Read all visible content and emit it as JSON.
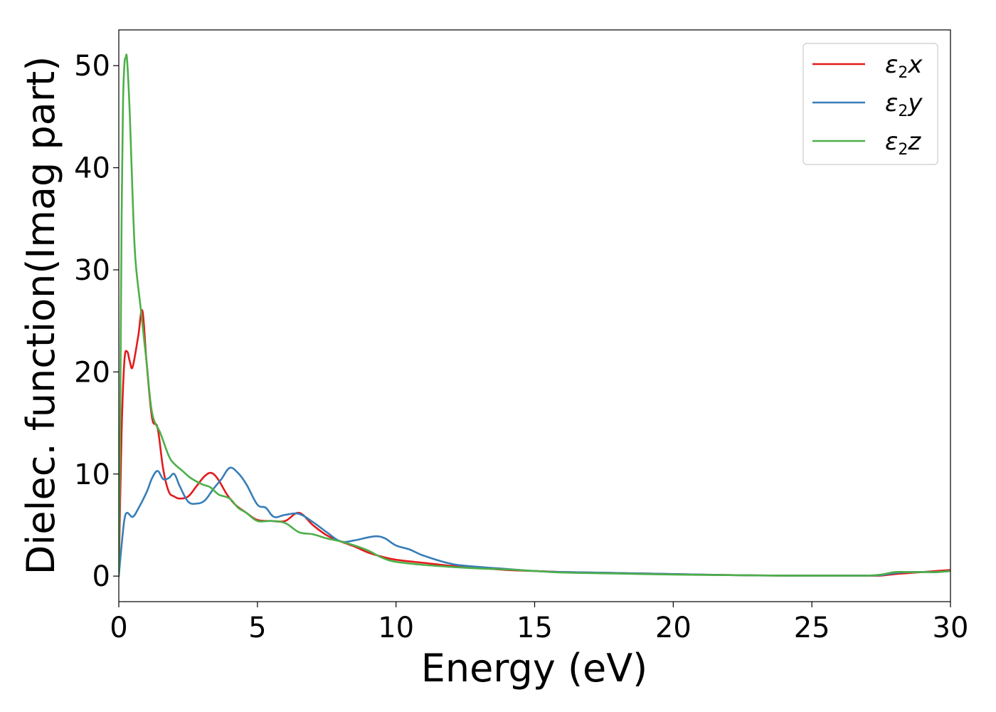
{
  "chart_data": {
    "type": "line",
    "title": "",
    "xlabel": "Energy (eV)",
    "ylabel": "Dielec. function(Imag part)",
    "xlim": [
      0,
      30
    ],
    "ylim": [
      -2.5,
      53.5
    ],
    "xticks": [
      0,
      5,
      10,
      15,
      20,
      25,
      30
    ],
    "yticks": [
      0,
      10,
      20,
      30,
      40,
      50
    ],
    "grid": false,
    "legend_position": "top-right",
    "series": [
      {
        "name": "ε2x",
        "label_main": "ε",
        "label_sub": "2",
        "label_tail": "x",
        "color": "#e41a1c",
        "x": [
          0,
          0.1,
          0.2,
          0.3,
          0.4,
          0.5,
          0.7,
          0.85,
          1.0,
          1.2,
          1.4,
          1.6,
          1.8,
          2.0,
          2.2,
          2.5,
          2.8,
          3.1,
          3.35,
          3.6,
          3.9,
          4.2,
          4.6,
          5.0,
          5.5,
          6.0,
          6.5,
          7.0,
          7.5,
          8.0,
          8.5,
          9.0,
          9.5,
          10.0,
          11.0,
          12.0,
          13.0,
          14.0,
          15.0,
          16.0,
          18.0,
          20.0,
          22.0,
          24.0,
          26.0,
          27.0,
          27.5,
          28.0,
          28.5,
          29.0,
          29.5,
          30.0
        ],
        "y": [
          0,
          14,
          21,
          22,
          21,
          20.5,
          23.5,
          26,
          21,
          15.5,
          14.5,
          10.5,
          8.3,
          7.8,
          7.6,
          7.8,
          8.8,
          9.8,
          10.1,
          9.4,
          8,
          7,
          6.2,
          5.5,
          5.4,
          5.4,
          6.2,
          5.0,
          4.0,
          3.4,
          2.9,
          2.3,
          1.9,
          1.6,
          1.3,
          1.0,
          0.8,
          0.6,
          0.5,
          0.4,
          0.3,
          0.2,
          0.1,
          0.05,
          0.05,
          0.05,
          0.05,
          0.2,
          0.3,
          0.4,
          0.5,
          0.6
        ]
      },
      {
        "name": "ε2y",
        "label_main": "ε",
        "label_sub": "2",
        "label_tail": "y",
        "color": "#377eb8",
        "x": [
          0,
          0.1,
          0.2,
          0.3,
          0.5,
          0.7,
          1.0,
          1.2,
          1.4,
          1.6,
          1.8,
          2.0,
          2.2,
          2.5,
          2.8,
          3.1,
          3.4,
          3.7,
          4.0,
          4.3,
          4.6,
          5.0,
          5.3,
          5.6,
          6.0,
          6.5,
          7.0,
          7.5,
          8.0,
          8.5,
          9.0,
          9.3,
          9.6,
          10.0,
          10.5,
          11.0,
          12.0,
          13.0,
          14.0,
          15.0,
          16.0,
          18.0,
          20.0,
          22.0,
          24.0,
          26.0,
          27.0,
          27.5,
          28.0,
          28.5,
          29.0,
          29.5,
          30.0
        ],
        "y": [
          0,
          3.0,
          5.5,
          6.2,
          5.8,
          6.6,
          8.2,
          9.6,
          10.3,
          9.5,
          9.6,
          10.0,
          8.8,
          7.3,
          7.1,
          7.4,
          8.5,
          9.5,
          10.6,
          10.1,
          9.0,
          7.0,
          6.7,
          5.8,
          6.0,
          6.1,
          5.3,
          4.3,
          3.4,
          3.5,
          3.8,
          3.9,
          3.7,
          3.0,
          2.6,
          2.0,
          1.2,
          0.9,
          0.7,
          0.5,
          0.4,
          0.3,
          0.2,
          0.1,
          0.05,
          0.05,
          0.05,
          0.1,
          0.3,
          0.4,
          0.4,
          0.4,
          0.5
        ]
      },
      {
        "name": "ε2z",
        "label_main": "ε",
        "label_sub": "2",
        "label_tail": "z",
        "color": "#4daf4a",
        "x": [
          0,
          0.05,
          0.1,
          0.15,
          0.2,
          0.25,
          0.3,
          0.4,
          0.5,
          0.6,
          0.8,
          1.0,
          1.2,
          1.5,
          1.8,
          2.0,
          2.3,
          2.6,
          3.0,
          3.3,
          3.6,
          4.0,
          4.3,
          4.6,
          5.0,
          5.5,
          6.0,
          6.5,
          7.0,
          7.5,
          8.0,
          8.5,
          9.0,
          9.5,
          10.0,
          11.0,
          12.0,
          13.0,
          14.0,
          15.0,
          16.0,
          18.0,
          20.0,
          22.0,
          24.0,
          26.0,
          27.0,
          27.5,
          28.0,
          28.5,
          29.0,
          29.5,
          30.0
        ],
        "y": [
          0,
          15,
          35,
          46,
          50,
          50.8,
          50.5,
          45,
          37,
          31,
          26,
          21,
          16,
          14.0,
          11.8,
          11.0,
          10.3,
          9.6,
          9.0,
          8.7,
          8.0,
          7.6,
          6.7,
          6.2,
          5.4,
          5.4,
          5.2,
          4.3,
          4.1,
          3.7,
          3.4,
          3.0,
          2.5,
          1.8,
          1.4,
          1.1,
          0.9,
          0.75,
          0.65,
          0.5,
          0.35,
          0.25,
          0.15,
          0.1,
          0.05,
          0.05,
          0.05,
          0.15,
          0.4,
          0.4,
          0.4,
          0.4,
          0.5
        ]
      }
    ]
  }
}
